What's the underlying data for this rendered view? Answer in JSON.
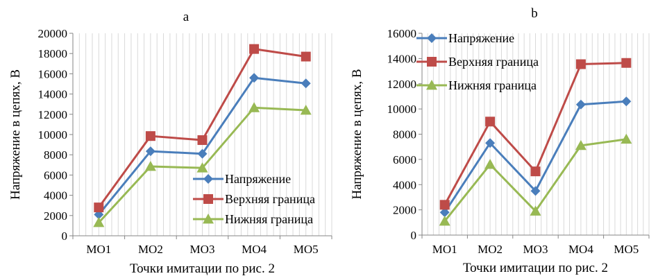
{
  "chart_data": [
    {
      "type": "line",
      "title": "a",
      "xlabel": "Точки имитации по рис. 2",
      "ylabel": "Напряжение в цепях, В",
      "categories": [
        "МО1",
        "МО2",
        "МО3",
        "МО4",
        "МО5"
      ],
      "ylim": [
        0,
        20000
      ],
      "ystep": 2000,
      "grid": "minor-vertical",
      "legend": "bottom-right",
      "series": [
        {
          "name": "Напряжение",
          "color": "#4a7ebb",
          "marker": "diamond",
          "values": [
            2100,
            8350,
            8100,
            15600,
            15050
          ]
        },
        {
          "name": "Верхняя граница",
          "color": "#be4b48",
          "marker": "square",
          "values": [
            2800,
            9850,
            9450,
            18450,
            17700
          ]
        },
        {
          "name": "Нижняя граница",
          "color": "#98b954",
          "marker": "triangle",
          "values": [
            1300,
            6850,
            6700,
            12650,
            12400
          ]
        }
      ]
    },
    {
      "type": "line",
      "title": "b",
      "xlabel": "Точки имитации по рис. 2",
      "ylabel": "Напряжение в цепях, В",
      "categories": [
        "МО1",
        "МО2",
        "МО3",
        "МО4",
        "МО5"
      ],
      "ylim": [
        0,
        16000
      ],
      "ystep": 2000,
      "grid": "minor-vertical",
      "legend": "top-left",
      "series": [
        {
          "name": "Напряжение",
          "color": "#4a7ebb",
          "marker": "diamond",
          "values": [
            1800,
            7300,
            3500,
            10350,
            10600
          ]
        },
        {
          "name": "Верхняя граница",
          "color": "#be4b48",
          "marker": "square",
          "values": [
            2400,
            9000,
            5050,
            13550,
            13650
          ]
        },
        {
          "name": "Нижняя граница",
          "color": "#98b954",
          "marker": "triangle",
          "values": [
            1100,
            5600,
            1900,
            7100,
            7600
          ]
        }
      ]
    }
  ]
}
